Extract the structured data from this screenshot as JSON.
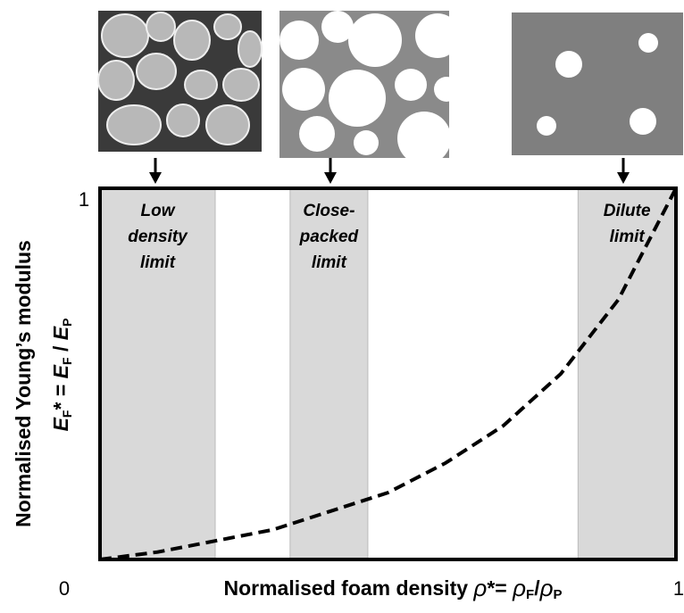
{
  "chart_data": {
    "type": "line",
    "x_label": [
      "Normalised foam density ",
      "ρ",
      "*= ",
      "ρ",
      "F",
      "/",
      "ρ",
      "P"
    ],
    "y_label": [
      "Normalised Young’s modulus",
      "E",
      "F",
      "* = ",
      "E",
      "F",
      " / ",
      "E",
      "P"
    ],
    "xlim": [
      0,
      1
    ],
    "ylim": [
      0,
      1
    ],
    "xticks": [
      0,
      1
    ],
    "yticks": [
      1
    ],
    "regions": [
      {
        "lines": [
          "Low",
          "density",
          "limit"
        ],
        "range": [
          0,
          0.2
        ]
      },
      {
        "lines": [
          "Close-",
          "packed",
          "limit"
        ],
        "range": [
          0.33,
          0.465
        ]
      },
      {
        "lines": [
          "Dilute",
          "limit"
        ],
        "range": [
          0.83,
          1
        ]
      }
    ],
    "region_color": "#d9d9d9",
    "series": [
      {
        "color": "#000000",
        "x": [
          0,
          0.1,
          0.2,
          0.3,
          0.4,
          0.5,
          0.6,
          0.7,
          0.8,
          0.9,
          1
        ],
        "values": [
          0,
          0.02,
          0.05,
          0.08,
          0.13,
          0.18,
          0.26,
          0.36,
          0.5,
          0.7,
          1
        ]
      }
    ]
  }
}
